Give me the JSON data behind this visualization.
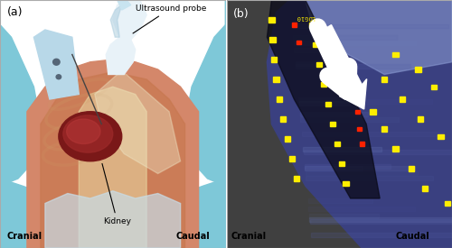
{
  "fig_width": 5.0,
  "fig_height": 2.75,
  "dpi": 100,
  "panel_a": {
    "label": "(a)",
    "label_cranial": "Cranial",
    "label_caudal": "Caudal",
    "label_kidney": "Kidney",
    "label_probe": "Ultrasound probe",
    "bg_white": "#ffffff",
    "blue_teal": "#7ec8d8",
    "blue_teal_dark": "#5aaabb",
    "skin_salmon": "#d4876a",
    "skin_orange": "#c87850",
    "skin_light": "#e8a880",
    "fat_yellow": "#e8d4a0",
    "fat_cream": "#f0e8c8",
    "kidney_dark": "#7a1818",
    "kidney_mid": "#9a2828",
    "kidney_light": "#b83838",
    "probe_white": "#e8f2f8",
    "probe_light_blue": "#c8e4f0",
    "probe_gray": "#aaccdd",
    "needle_gray": "#444444",
    "needle_device_color": "#b8d8e8",
    "swirl_color": "#cc9966",
    "annotation_color": "#111111"
  },
  "panel_b": {
    "label": "(b)",
    "label_cranial": "Cranial",
    "label_caudal": "Caudal",
    "bg_dark": "#1a1a20",
    "gray_outside": "#404040",
    "us_blue_dark": "#3a4080",
    "us_blue_mid": "#5560a8",
    "us_blue_light": "#7080c0",
    "us_upper_light": "#8898d0",
    "dark_stripe": "#0a0a18",
    "arrow_white": "#ffffff",
    "dot_yellow": "#ffee00",
    "dot_red": "#ff2200",
    "text_white": "#ffffff",
    "text_black": "#000000",
    "log_text_color": "#ffee00",
    "log_text": "LOG10"
  }
}
